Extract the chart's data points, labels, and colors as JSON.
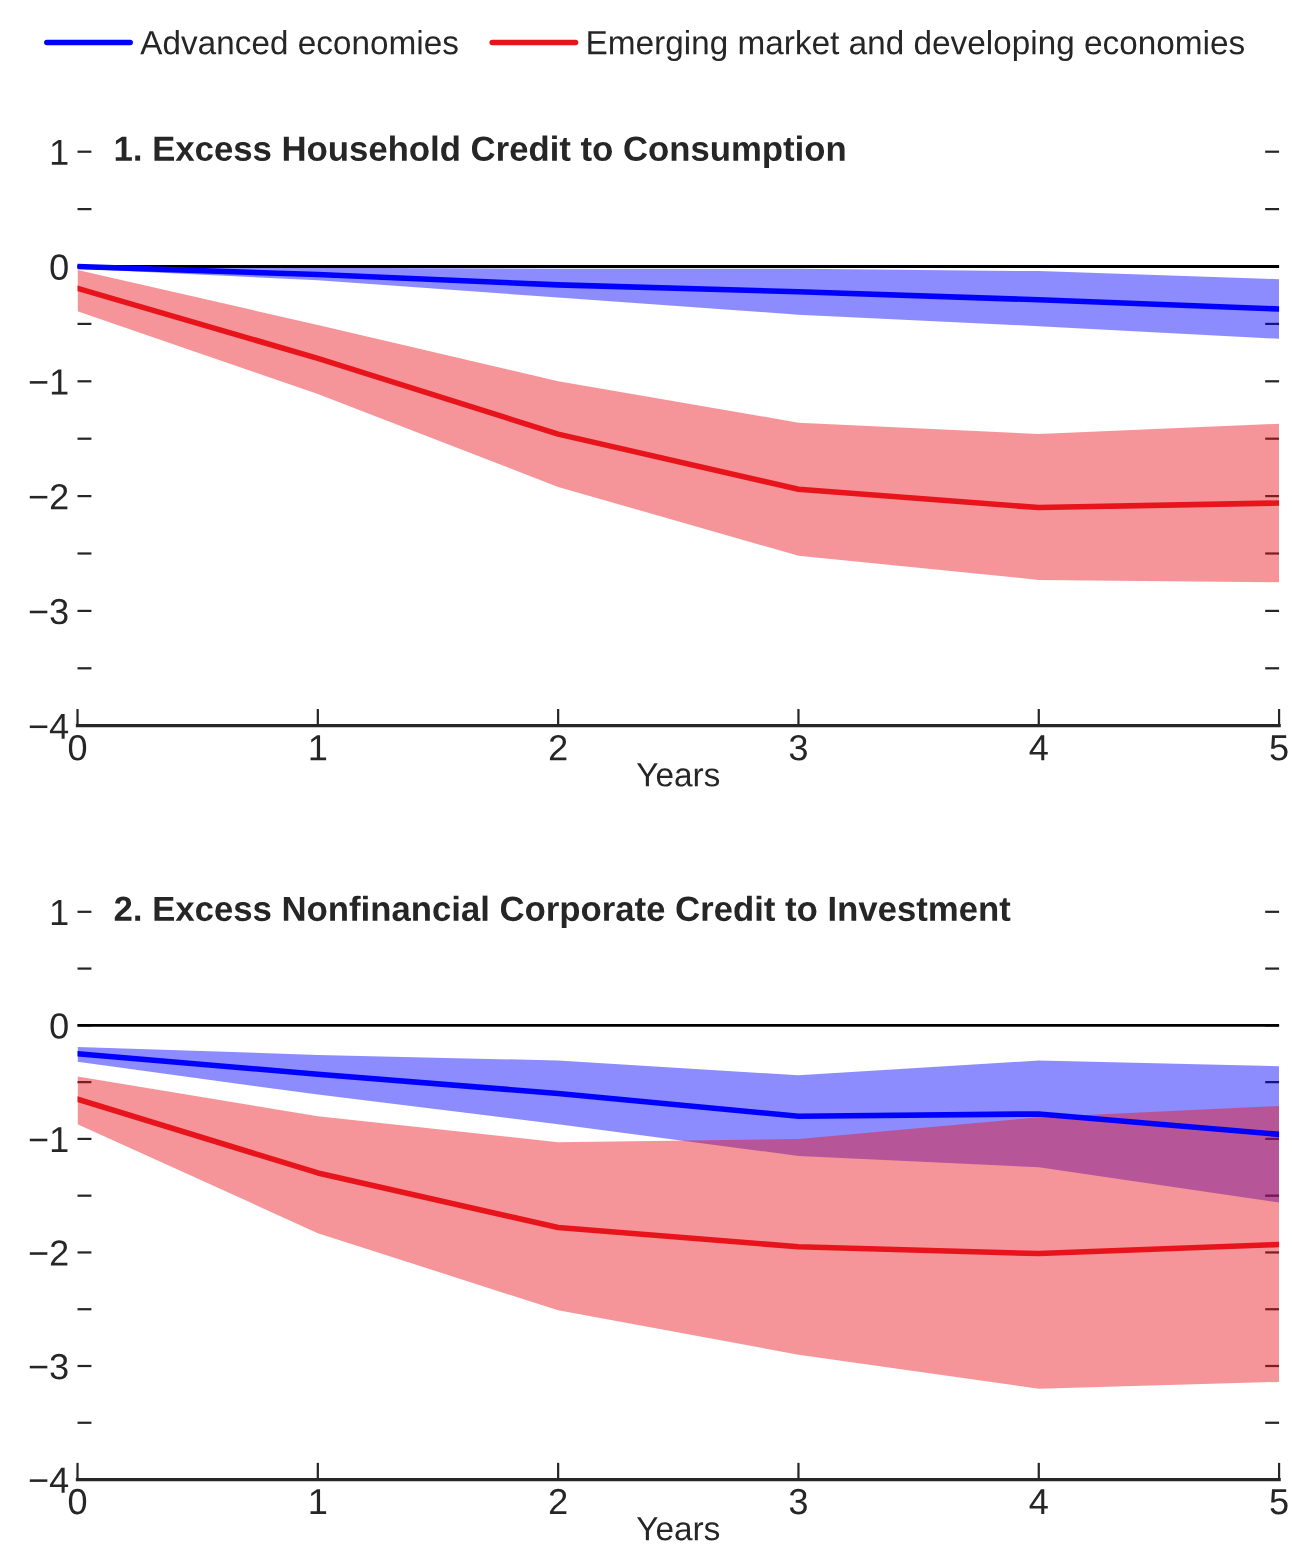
{
  "chart_data": [
    {
      "type": "line",
      "title": "1. Excess Household Credit to Consumption",
      "xlabel": "Years",
      "legend": "top",
      "grid": false,
      "line_style": "solid",
      "marker": "none",
      "x": [
        0,
        1,
        2,
        3,
        4,
        5
      ],
      "xlim": [
        0,
        5
      ],
      "xticks": [
        0,
        1,
        2,
        3,
        4,
        5
      ],
      "ylim": [
        -4,
        1
      ],
      "yticks": [
        1,
        {
          "value": 0.5,
          "label": null
        },
        0,
        {
          "value": -0.5,
          "label": null
        },
        {
          "value": -1,
          "label": "−1"
        },
        {
          "value": -1.5,
          "label": null
        },
        {
          "value": -2,
          "label": "−2"
        },
        {
          "value": -2.5,
          "label": null
        },
        {
          "value": -3,
          "label": "−3"
        },
        {
          "value": -3.5,
          "label": null
        },
        {
          "value": -4,
          "label": "−4"
        }
      ],
      "ref_lines": [
        {
          "axis": "y",
          "value": 0,
          "label": null,
          "color": "#000000"
        }
      ],
      "series": [
        {
          "name": "Advanced economies",
          "color": "#0000ff",
          "values": [
            0,
            -0.07,
            -0.16,
            -0.22,
            -0.29,
            -0.37
          ],
          "upper": [
            0,
            -0.01,
            -0.02,
            -0.02,
            -0.04,
            -0.11
          ],
          "lower": [
            -0.02,
            -0.12,
            -0.27,
            -0.42,
            -0.52,
            -0.63
          ]
        },
        {
          "name": "Emerging market and developing economies",
          "color": "#e8141c",
          "values": [
            -0.19,
            -0.8,
            -1.46,
            -1.94,
            -2.1,
            -2.06
          ],
          "upper": [
            -0.03,
            -0.51,
            -1.0,
            -1.36,
            -1.46,
            -1.37
          ],
          "lower": [
            -0.39,
            -1.11,
            -1.92,
            -2.52,
            -2.73,
            -2.75
          ]
        }
      ]
    },
    {
      "type": "line",
      "title": "2. Excess Nonfinancial Corporate Credit to Investment",
      "xlabel": "Years",
      "grid": false,
      "line_style": "solid",
      "marker": "none",
      "x": [
        0,
        1,
        2,
        3,
        4,
        5
      ],
      "xlim": [
        0,
        5
      ],
      "xticks": [
        0,
        1,
        2,
        3,
        4,
        5
      ],
      "ylim": [
        -4,
        1
      ],
      "yticks": [
        1,
        {
          "value": 0.5,
          "label": null
        },
        0,
        {
          "value": -0.5,
          "label": null
        },
        {
          "value": -1,
          "label": "−1"
        },
        {
          "value": -1.5,
          "label": null
        },
        {
          "value": -2,
          "label": "−2"
        },
        {
          "value": -2.5,
          "label": null
        },
        {
          "value": -3,
          "label": "−3"
        },
        {
          "value": -3.5,
          "label": null
        },
        {
          "value": -4,
          "label": "−4"
        }
      ],
      "ref_lines": [
        {
          "axis": "y",
          "value": 0,
          "label": null,
          "color": "#000000"
        }
      ],
      "series": [
        {
          "color": "#0000ff",
          "values": [
            -0.25,
            -0.43,
            -0.6,
            -0.8,
            -0.78,
            -0.96
          ],
          "upper": [
            -0.19,
            -0.26,
            -0.31,
            -0.44,
            -0.31,
            -0.36
          ],
          "lower": [
            -0.32,
            -0.61,
            -0.87,
            -1.15,
            -1.25,
            -1.56
          ]
        },
        {
          "color": "#e8141c",
          "values": [
            -0.65,
            -1.3,
            -1.78,
            -1.95,
            -2.01,
            -1.93
          ],
          "upper": [
            -0.45,
            -0.8,
            -1.03,
            -1.0,
            -0.81,
            -0.71
          ],
          "lower": [
            -0.87,
            -1.83,
            -2.51,
            -2.9,
            -3.2,
            -3.14
          ]
        }
      ]
    }
  ]
}
